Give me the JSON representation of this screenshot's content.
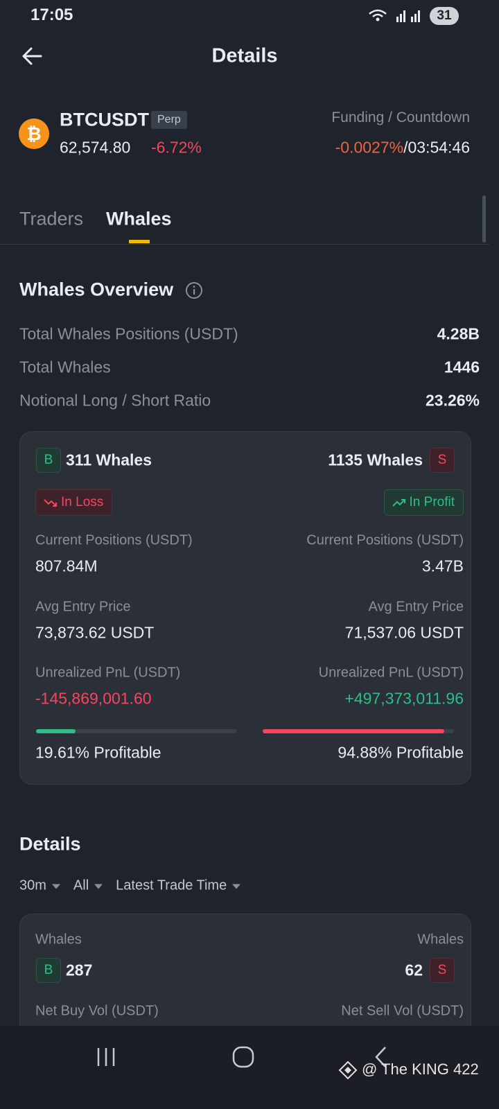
{
  "status_bar": {
    "time": "17:05",
    "battery": "31"
  },
  "header": {
    "title": "Details"
  },
  "ticker": {
    "symbol": "BTCUSDT",
    "badge": "Perp",
    "price": "62,574.80",
    "change": "-6.72%",
    "funding_label": "Funding / Countdown",
    "funding_rate": "-0.0027%",
    "separator": "/",
    "countdown": "03:54:46"
  },
  "tabs": [
    "Traders",
    "Whales"
  ],
  "overview": {
    "title": "Whales Overview",
    "rows": [
      [
        "Total Whales Positions (USDT)",
        "4.28B"
      ],
      [
        "Total Whales",
        "1446"
      ],
      [
        "Notional Long / Short Ratio",
        "23.26%"
      ]
    ]
  },
  "long": {
    "badge": "B",
    "count": "311 Whales",
    "status": "In Loss",
    "positions_label": "Current Positions (USDT)",
    "positions": "807.84M",
    "entry_label": "Avg Entry Price",
    "entry": "73,873.62 USDT",
    "pnl_label": "Unrealized PnL (USDT)",
    "pnl": "-145,869,001.60",
    "profitable": {
      "value": 19.61,
      "label": "19.61% Profitable"
    }
  },
  "short": {
    "badge": "S",
    "count": "1135 Whales",
    "status": "In Profit",
    "positions_label": "Current Positions (USDT)",
    "positions": "3.47B",
    "entry_label": "Avg Entry Price",
    "entry": "71,537.06 USDT",
    "pnl_label": "Unrealized PnL (USDT)",
    "pnl": "+497,373,011.96",
    "profitable": {
      "value": 94.88,
      "label": "94.88% Profitable"
    }
  },
  "details": {
    "title": "Details",
    "filters": [
      "30m",
      "All",
      "Latest Trade Time"
    ],
    "buy": {
      "label": "Whales",
      "badge": "B",
      "count": "287",
      "vol_label": "Net Buy Vol (USDT)"
    },
    "sell": {
      "label": "Whales",
      "badge": "S",
      "count": "62",
      "vol_label": "Net Sell Vol (USDT)"
    }
  },
  "watermark": "@ The KING 422"
}
